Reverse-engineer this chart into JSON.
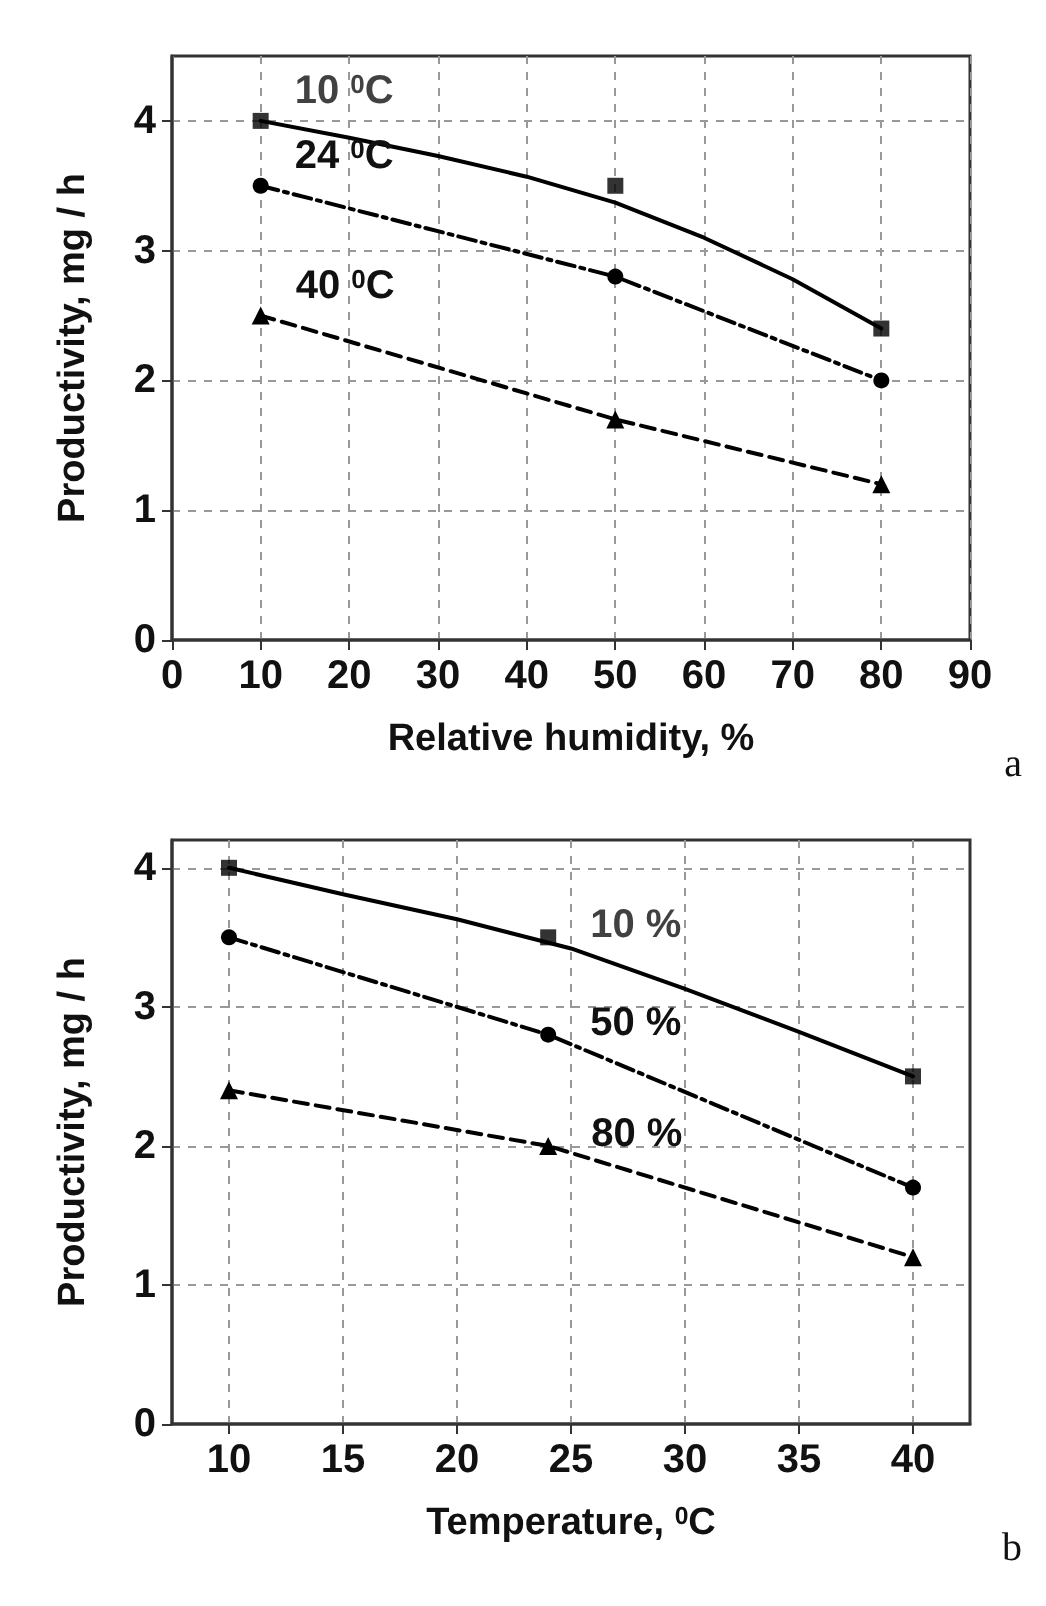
{
  "chart_data": [
    {
      "type": "line",
      "xlabel": "Relative humidity, %",
      "ylabel": "Productivity, mg / h",
      "xlim": [
        0,
        90
      ],
      "ylim": [
        0,
        4.5
      ],
      "xticks": [
        0,
        10,
        20,
        30,
        40,
        50,
        60,
        70,
        80,
        90
      ],
      "yticks": [
        0,
        1,
        2,
        3,
        4
      ],
      "grid": true,
      "legend": false,
      "annotations": [
        "a"
      ],
      "x": [
        10,
        50,
        80
      ],
      "series": [
        {
          "name": "10 $^{0}$C",
          "type": "scatter",
          "marker": "square",
          "color": "#000000",
          "values": [
            4,
            3.5,
            2.4
          ]
        },
        {
          "type": "line",
          "marker": "none",
          "line_style": "solid",
          "color": "#000000",
          "x": [
            10,
            20,
            30,
            40,
            50,
            60,
            70,
            80
          ],
          "values": [
            4,
            3.87,
            3.73,
            3.57,
            3.37,
            3.1,
            2.78,
            2.4
          ]
        },
        {
          "name": "24 $^{0}$C",
          "marker": "circle",
          "line_style": "dashdot",
          "color": "#000000",
          "values": [
            3.5,
            2.8,
            2
          ]
        },
        {
          "name": "40 $^{0}$C",
          "marker": "triangle",
          "line_style": "dashed",
          "color": "#000000",
          "values": [
            2.5,
            1.7,
            1.2
          ]
        }
      ]
    },
    {
      "type": "line",
      "xlabel": "Temperature, $^{0}$C",
      "ylabel": "Productivity, mg / h",
      "xlim": [
        7.5,
        42.5
      ],
      "ylim": [
        0,
        4.2
      ],
      "xticks": [
        10,
        15,
        20,
        25,
        30,
        35,
        40
      ],
      "yticks": [
        0,
        1,
        2,
        3,
        4
      ],
      "grid": true,
      "legend": false,
      "annotations": [
        "b"
      ],
      "x": [
        10,
        24,
        40
      ],
      "series": [
        {
          "name": "10 %",
          "type": "scatter",
          "marker": "square",
          "color": "#000000",
          "values": [
            4,
            3.5,
            2.5
          ]
        },
        {
          "type": "line",
          "marker": "none",
          "line_style": "solid",
          "color": "#000000",
          "x": [
            10,
            15,
            20,
            25,
            30,
            35,
            40
          ],
          "values": [
            4,
            3.81,
            3.63,
            3.42,
            3.13,
            2.82,
            2.5
          ]
        },
        {
          "name": "50 %",
          "marker": "circle",
          "line_style": "dashdot",
          "color": "#000000",
          "values": [
            3.5,
            2.8,
            1.7
          ]
        },
        {
          "name": "80 %",
          "marker": "triangle",
          "line_style": "dashed",
          "color": "#000000",
          "values": [
            2.4,
            2,
            1.2
          ]
        }
      ]
    }
  ]
}
